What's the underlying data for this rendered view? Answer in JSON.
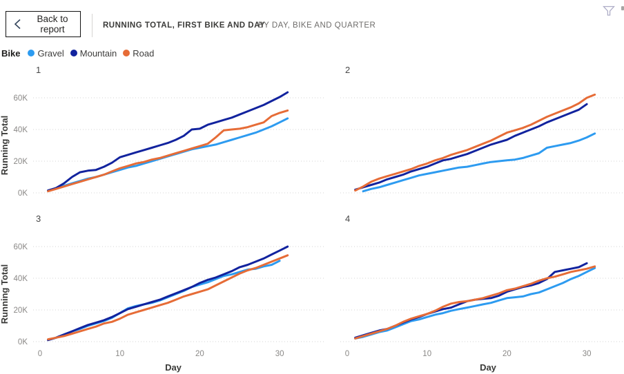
{
  "header": {
    "back_label": "Back to report",
    "back_icon": "chevron-left-icon",
    "title": "RUNNING TOTAL, FIRST BIKE AND DAY",
    "subtitle": "BY DAY, BIKE AND QUARTER",
    "filter_icon": "funnel-icon"
  },
  "legend": {
    "title": "Bike",
    "items": [
      {
        "label": "Gravel",
        "color": "#2D9BF0"
      },
      {
        "label": "Mountain",
        "color": "#12239E"
      },
      {
        "label": "Road",
        "color": "#E66C37"
      }
    ]
  },
  "axes": {
    "ylabel": "Running Total",
    "xlabel": "Day",
    "yticks": [
      {
        "value": 0,
        "label": "0K"
      },
      {
        "value": 20,
        "label": "20K"
      },
      {
        "value": 40,
        "label": "40K"
      },
      {
        "value": 60,
        "label": "60K"
      }
    ],
    "xticks": [
      {
        "value": 0,
        "label": "0"
      },
      {
        "value": 10,
        "label": "10"
      },
      {
        "value": 20,
        "label": "20"
      },
      {
        "value": 30,
        "label": "30"
      }
    ],
    "ylim": [
      0,
      65
    ],
    "x_range_days": [
      1,
      31
    ],
    "grid": "horizontal-dotted",
    "units": "thousands"
  },
  "chart_data": [
    {
      "type": "line",
      "quarter": "1",
      "x_start": 1,
      "x_step": 1,
      "series": [
        {
          "name": "Gravel",
          "values": [
            1.5,
            3,
            4.5,
            6,
            7.5,
            9,
            10,
            11.5,
            13,
            14.5,
            16,
            17,
            18.5,
            20,
            21.5,
            23,
            24.5,
            26,
            27.5,
            28.5,
            29.5,
            30.5,
            32,
            33.5,
            35,
            36.5,
            38,
            40,
            42,
            44.5,
            47
          ]
        },
        {
          "name": "Mountain",
          "values": [
            1.5,
            3,
            6,
            10,
            13,
            14,
            14.5,
            16.5,
            19,
            22.5,
            24,
            25.5,
            27,
            28.5,
            30,
            31.5,
            33.5,
            36,
            40,
            40.5,
            43,
            44.5,
            46,
            47.5,
            49.5,
            51.5,
            53.5,
            55.5,
            58,
            60.5,
            63.5
          ]
        },
        {
          "name": "Road",
          "values": [
            1,
            2.5,
            4,
            5.5,
            7,
            8.5,
            10,
            11.5,
            13.5,
            15.5,
            17,
            18.5,
            19.5,
            21,
            22,
            23.5,
            25,
            26.5,
            28,
            29.5,
            31,
            35,
            39.5,
            40,
            40.5,
            41.5,
            43,
            44.5,
            48.5,
            50.5,
            52
          ]
        }
      ]
    },
    {
      "type": "line",
      "quarter": "2",
      "x_start": 1,
      "x_step": 1,
      "series": [
        {
          "name": "Gravel",
          "values": [
            null,
            1,
            2.5,
            3.5,
            5,
            6.5,
            8,
            9.5,
            11,
            12,
            13,
            14,
            15,
            16,
            16.5,
            17.5,
            18.5,
            19.5,
            20,
            20.5,
            21,
            22,
            23.5,
            25,
            28.5,
            29.5,
            30.5,
            31.5,
            33,
            35,
            37.5
          ]
        },
        {
          "name": "Mountain",
          "values": [
            2,
            3.5,
            5,
            6.5,
            8.5,
            10,
            11.5,
            13.5,
            15,
            16.5,
            18.5,
            20.5,
            21.5,
            23,
            24.5,
            26.5,
            28.5,
            30.5,
            32,
            33.5,
            36,
            38,
            40,
            42,
            44.5,
            46.5,
            48.5,
            50.5,
            52.5,
            56
          ]
        },
        {
          "name": "Road",
          "values": [
            1.5,
            4,
            7,
            9,
            10.5,
            12,
            13.5,
            15,
            17,
            18.5,
            20.5,
            22,
            24,
            25.5,
            27,
            29,
            31,
            33,
            35.5,
            38,
            39.5,
            41,
            43,
            45.5,
            48,
            50,
            52,
            54,
            56.5,
            60,
            62
          ]
        }
      ]
    },
    {
      "type": "line",
      "quarter": "3",
      "x_start": 1,
      "x_step": 1,
      "series": [
        {
          "name": "Gravel",
          "values": [
            1,
            2.5,
            4.5,
            6.5,
            8,
            10,
            11.5,
            13,
            15,
            18,
            21,
            22.5,
            23.5,
            24.5,
            26,
            28,
            30,
            32,
            34.5,
            36,
            37.5,
            39.5,
            41.5,
            42.5,
            44,
            45.5,
            46,
            47.5,
            48.5,
            51
          ]
        },
        {
          "name": "Mountain",
          "values": [
            1,
            2.5,
            4.5,
            6.5,
            8.5,
            10.5,
            12,
            13.5,
            15.5,
            18,
            20.5,
            22,
            23.5,
            25,
            26.5,
            28.5,
            30.5,
            32.5,
            34.5,
            37,
            39,
            40.5,
            42.5,
            44.5,
            47,
            48.5,
            50.5,
            52.5,
            55,
            57.5,
            60
          ]
        },
        {
          "name": "Road",
          "values": [
            1.5,
            2.5,
            3.5,
            5,
            6.5,
            8,
            9.5,
            11.5,
            12.5,
            14.5,
            17,
            18.5,
            20,
            21.5,
            23,
            24.5,
            26.5,
            28.5,
            30,
            31.5,
            33,
            35.5,
            38,
            40.5,
            43,
            45,
            46.5,
            48.5,
            50.5,
            52.5,
            54.5
          ]
        }
      ]
    },
    {
      "type": "line",
      "quarter": "4",
      "x_start": 1,
      "x_step": 1,
      "series": [
        {
          "name": "Gravel",
          "values": [
            2,
            3,
            4.5,
            6,
            7,
            9,
            11,
            13,
            14,
            15.5,
            17,
            18,
            19.5,
            20.5,
            21.5,
            22.5,
            23.5,
            24.5,
            26,
            27.5,
            28,
            28.5,
            30,
            31,
            33,
            35,
            37,
            39.5,
            41.5,
            44,
            46.5
          ]
        },
        {
          "name": "Mountain",
          "values": [
            2.5,
            4,
            5.5,
            7,
            8,
            10,
            12,
            14,
            15.5,
            17.5,
            19,
            20.5,
            21.5,
            23.5,
            25.5,
            26.5,
            27,
            27.5,
            29,
            31.5,
            33,
            34.5,
            35.5,
            37,
            39.5,
            44,
            45,
            46,
            47,
            49.5
          ]
        },
        {
          "name": "Road",
          "values": [
            2,
            3.5,
            5,
            6.5,
            8,
            10,
            12.5,
            14.5,
            16,
            17.5,
            19.5,
            22,
            24,
            25,
            25.5,
            26.5,
            27.5,
            29,
            30.5,
            32.5,
            33.5,
            35,
            36.5,
            38.5,
            40,
            41,
            42.5,
            44,
            45,
            46,
            47.5
          ]
        }
      ]
    }
  ]
}
